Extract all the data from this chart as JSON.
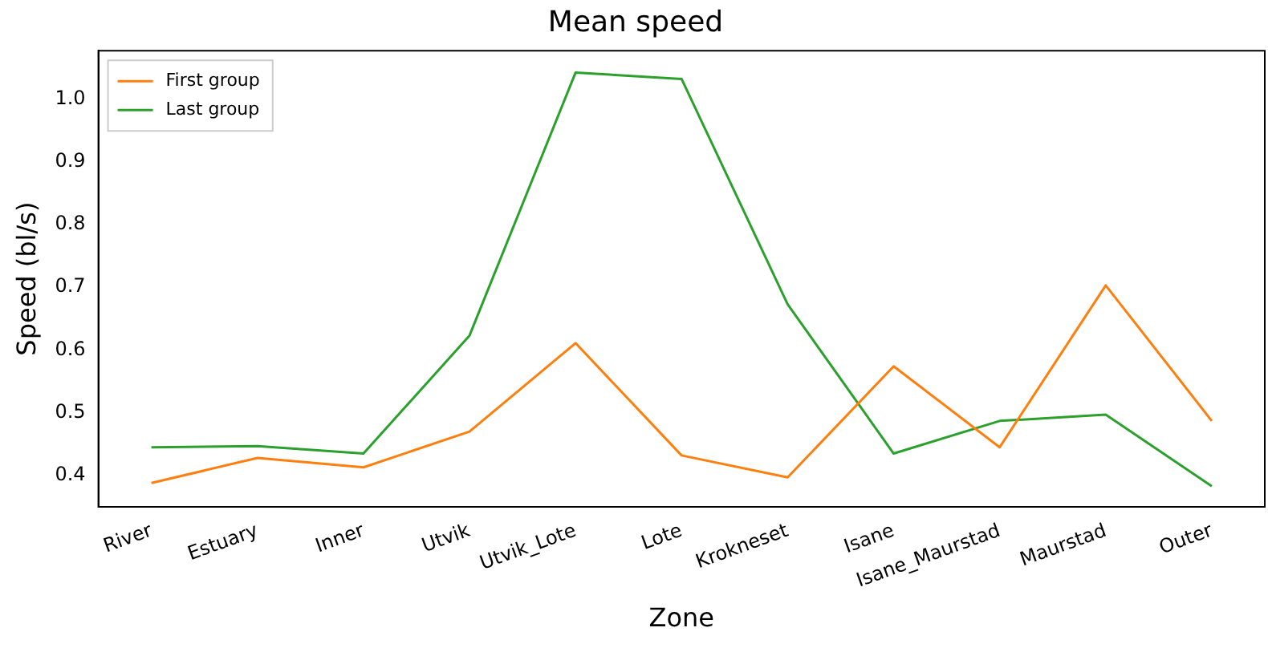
{
  "chart_data": {
    "type": "line",
    "title": "Mean speed",
    "xlabel": "Zone",
    "ylabel": "Speed (bl/s)",
    "categories": [
      "River",
      "Estuary",
      "Inner",
      "Utvik",
      "Utvik_Lote",
      "Lote",
      "Krokneset",
      "Isane",
      "Isane_Maurstad",
      "Maurstad",
      "Outer"
    ],
    "series": [
      {
        "name": "First group",
        "color": "#ff7f0e",
        "values": [
          0.388,
          0.428,
          0.413,
          0.47,
          0.611,
          0.432,
          0.397,
          0.574,
          0.445,
          0.703,
          0.487
        ]
      },
      {
        "name": "Last group",
        "color": "#2ca02c",
        "values": [
          0.445,
          0.447,
          0.435,
          0.623,
          1.042,
          1.032,
          0.673,
          0.435,
          0.487,
          0.497,
          0.383
        ]
      }
    ],
    "ylim": [
      0.35,
      1.077
    ],
    "yticks": [
      0.4,
      0.5,
      0.6,
      0.7,
      0.8,
      0.9,
      {
        "value": 1,
        "label": "1.0"
      }
    ],
    "grid": false,
    "legend": "top left",
    "marker": "none",
    "line_style": "solid"
  }
}
